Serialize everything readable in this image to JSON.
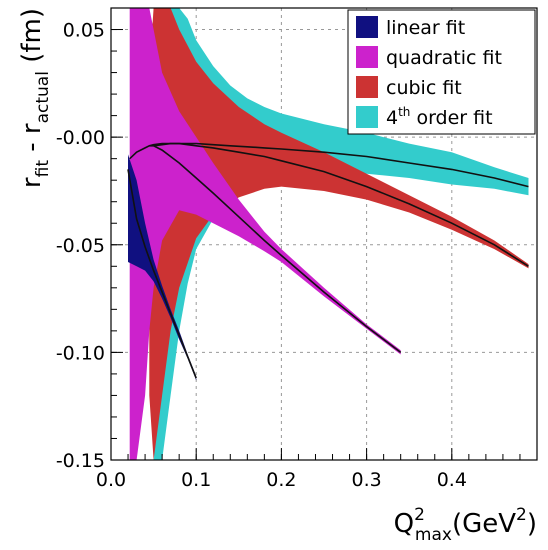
{
  "chart_data": {
    "type": "area",
    "xlabel": {
      "main": "Q",
      "sup": "2",
      "sub": "max",
      "unit_pre": "(GeV",
      "unit_sup": "2",
      "unit_post": ")"
    },
    "ylabel": {
      "r1": "r",
      "s1": "fit",
      "mid": " - r",
      "s2": "actual",
      "unit": " (fm)"
    },
    "xlim": [
      0.0,
      0.5
    ],
    "ylim": [
      -0.15,
      0.06
    ],
    "x_ticks": [
      0.0,
      0.1,
      0.2,
      0.3,
      0.4
    ],
    "x_tick_labels": [
      "0.0",
      "0.1",
      "0.2",
      "0.3",
      "0.4"
    ],
    "y_ticks": [
      0.05,
      0.0,
      -0.05,
      -0.1,
      -0.15
    ],
    "y_tick_labels": [
      "0.05",
      "-0.00",
      "-0.05",
      "-0.10",
      "-0.15"
    ],
    "grid": true,
    "legend_position": "top-right",
    "series": [
      {
        "name": "4th order fit",
        "sup": "th",
        "base": "4",
        "rest": " order fit",
        "color": "#33cccc",
        "x": [
          0.05,
          0.06,
          0.07,
          0.08,
          0.09,
          0.1,
          0.12,
          0.14,
          0.16,
          0.18,
          0.2,
          0.25,
          0.3,
          0.35,
          0.4,
          0.45,
          0.49
        ],
        "center": [
          -0.004,
          -0.0035,
          -0.003,
          -0.003,
          -0.003,
          -0.003,
          -0.0035,
          -0.004,
          -0.0045,
          -0.005,
          -0.0055,
          -0.007,
          -0.009,
          -0.012,
          -0.015,
          -0.019,
          -0.023
        ],
        "upper": [
          0.06,
          0.06,
          0.06,
          0.06,
          0.055,
          0.045,
          0.033,
          0.024,
          0.018,
          0.014,
          0.011,
          0.006,
          0.002,
          -0.003,
          -0.007,
          -0.014,
          -0.019
        ],
        "lower": [
          -0.15,
          -0.15,
          -0.12,
          -0.09,
          -0.068,
          -0.052,
          -0.038,
          -0.028,
          -0.022,
          -0.018,
          -0.017,
          -0.016,
          -0.017,
          -0.019,
          -0.022,
          -0.024,
          -0.027
        ]
      },
      {
        "name": "cubic fit",
        "color": "#cc3333",
        "x": [
          0.045,
          0.05,
          0.06,
          0.07,
          0.08,
          0.1,
          0.12,
          0.15,
          0.18,
          0.2,
          0.25,
          0.3,
          0.35,
          0.4,
          0.45,
          0.49
        ],
        "center": [
          -0.004,
          -0.0035,
          -0.003,
          -0.003,
          -0.003,
          -0.004,
          -0.005,
          -0.007,
          -0.009,
          -0.011,
          -0.016,
          -0.023,
          -0.031,
          -0.04,
          -0.05,
          -0.06
        ],
        "upper": [
          0.03,
          0.06,
          0.06,
          0.06,
          0.05,
          0.035,
          0.025,
          0.014,
          0.006,
          0.002,
          -0.007,
          -0.017,
          -0.027,
          -0.037,
          -0.048,
          -0.059
        ],
        "lower": [
          -0.12,
          -0.15,
          -0.12,
          -0.09,
          -0.07,
          -0.047,
          -0.036,
          -0.028,
          -0.024,
          -0.023,
          -0.025,
          -0.029,
          -0.035,
          -0.043,
          -0.052,
          -0.061
        ]
      },
      {
        "name": "quadratic fit",
        "color": "#cc22cc",
        "x": [
          0.022,
          0.03,
          0.04,
          0.045,
          0.05,
          0.06,
          0.08,
          0.1,
          0.12,
          0.15,
          0.18,
          0.2,
          0.25,
          0.3,
          0.34
        ],
        "center": [
          -0.01,
          -0.007,
          -0.005,
          -0.004,
          -0.004,
          -0.006,
          -0.012,
          -0.019,
          -0.026,
          -0.037,
          -0.048,
          -0.055,
          -0.072,
          -0.088,
          -0.1
        ],
        "upper": [
          0.06,
          0.06,
          0.06,
          0.06,
          0.05,
          0.03,
          0.012,
          0.0,
          -0.012,
          -0.029,
          -0.044,
          -0.052,
          -0.07,
          -0.087,
          -0.099
        ],
        "lower": [
          -0.15,
          -0.15,
          -0.12,
          -0.09,
          -0.07,
          -0.048,
          -0.034,
          -0.036,
          -0.04,
          -0.046,
          -0.053,
          -0.058,
          -0.074,
          -0.089,
          -0.101
        ]
      },
      {
        "name": "linear fit",
        "color": "#101080",
        "x": [
          0.02,
          0.03,
          0.04,
          0.05,
          0.06,
          0.07,
          0.08,
          0.09,
          0.1
        ],
        "center": [
          -0.015,
          -0.038,
          -0.051,
          -0.062,
          -0.072,
          -0.082,
          -0.092,
          -0.102,
          -0.112
        ],
        "upper": [
          -0.008,
          -0.02,
          -0.04,
          -0.057,
          -0.069,
          -0.08,
          -0.09,
          -0.101,
          -0.111
        ],
        "lower": [
          -0.058,
          -0.06,
          -0.062,
          -0.067,
          -0.075,
          -0.084,
          -0.094,
          -0.103,
          -0.113
        ]
      }
    ]
  }
}
